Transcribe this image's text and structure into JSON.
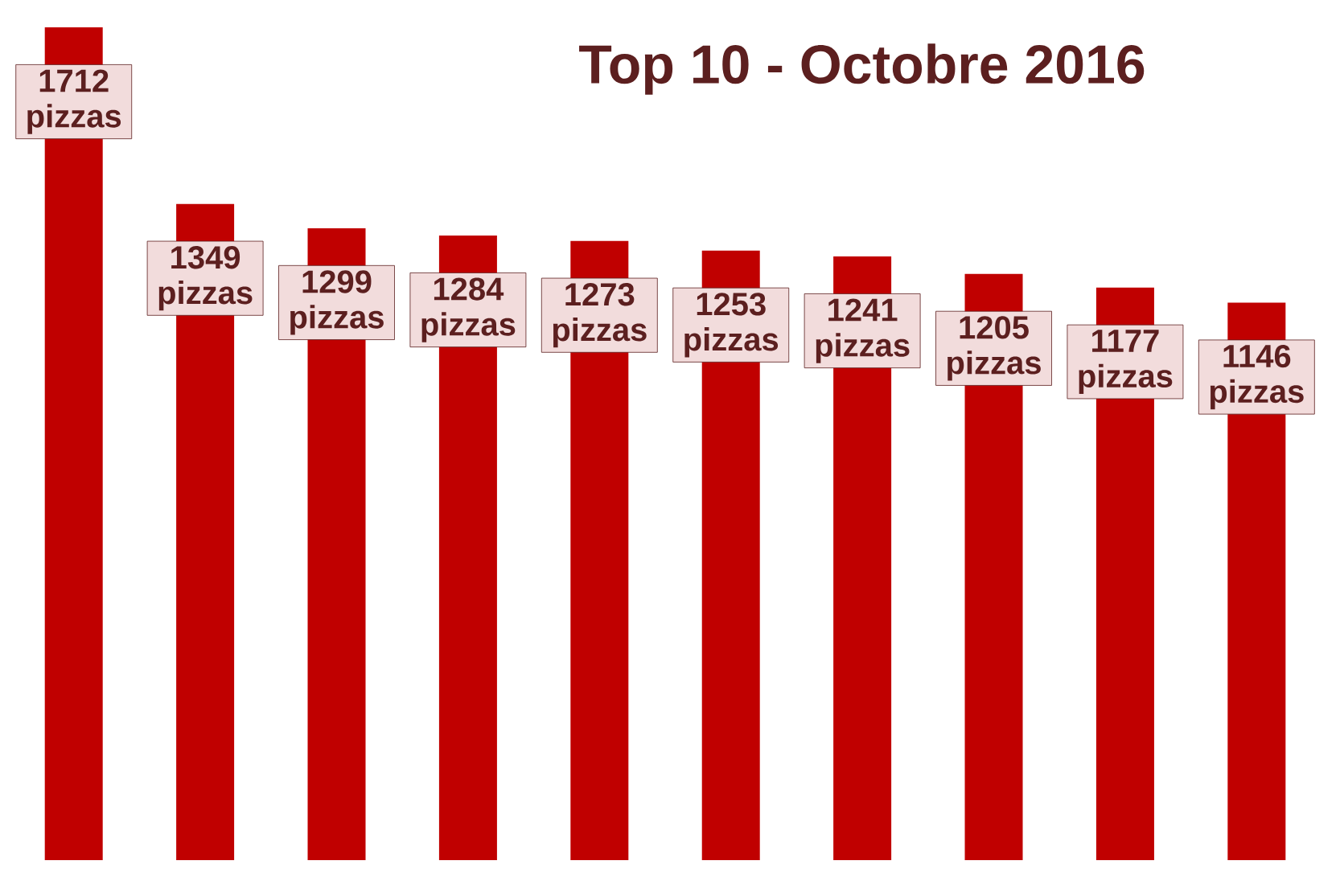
{
  "chart_data": {
    "type": "bar",
    "title": "Top 10 - Octobre 2016",
    "categories": [
      null,
      null,
      null,
      null,
      null,
      null,
      null,
      null,
      null,
      null
    ],
    "values": [
      1712,
      1349,
      1299,
      1284,
      1273,
      1253,
      1241,
      1205,
      1177,
      1146
    ],
    "value_labels": [
      "1712 pizzas",
      "1349 pizzas",
      "1299 pizzas",
      "1284 pizzas",
      "1273 pizzas",
      "1253 pizzas",
      "1241 pizzas",
      "1205 pizzas",
      "1177 pizzas",
      "1146 pizzas"
    ],
    "color": "#c00000"
  }
}
